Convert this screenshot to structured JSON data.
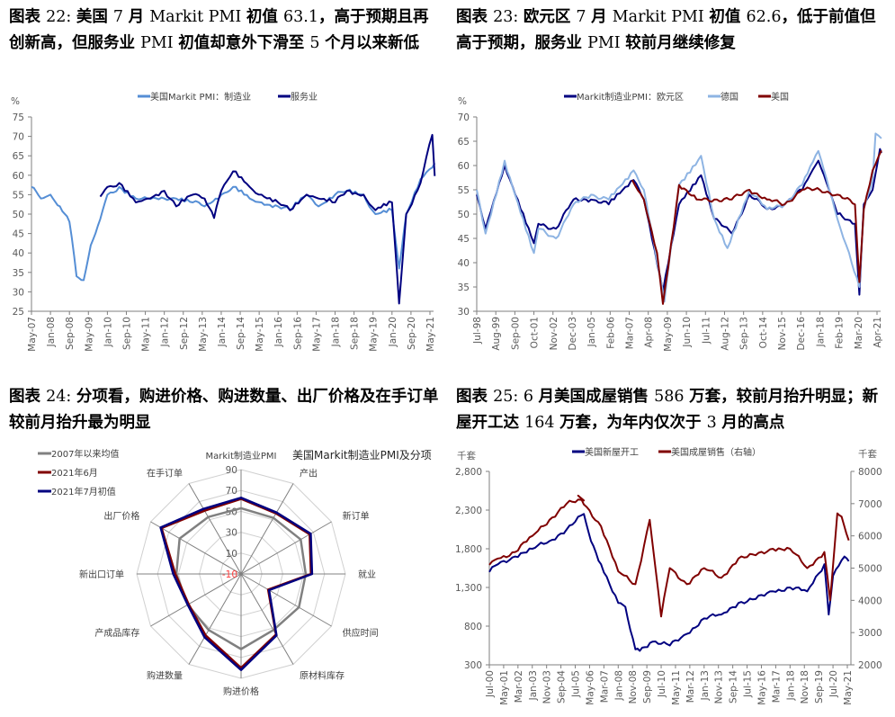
{
  "panels": [
    {
      "caption_parts": [
        {
          "t": "图表 ",
          "s": 0
        },
        {
          "t": "22: ",
          "s": 1
        },
        {
          "t": "美国 ",
          "s": 0
        },
        {
          "t": "7 ",
          "s": 1
        },
        {
          "t": "月 ",
          "s": 0
        },
        {
          "t": "Markit PMI ",
          "s": 1
        },
        {
          "t": "初值 ",
          "s": 0
        },
        {
          "t": "63.1",
          "s": 1
        },
        {
          "t": "，高于预期且再创新高，但服务业 ",
          "s": 0
        },
        {
          "t": "PMI ",
          "s": 1
        },
        {
          "t": "初值却意外下滑至 ",
          "s": 0
        },
        {
          "t": "5 ",
          "s": 1
        },
        {
          "t": "个月以来新低",
          "s": 0
        }
      ]
    },
    {
      "caption_parts": [
        {
          "t": "图表 ",
          "s": 0
        },
        {
          "t": "23: ",
          "s": 1
        },
        {
          "t": "欧元区 ",
          "s": 0
        },
        {
          "t": "7 ",
          "s": 1
        },
        {
          "t": "月 ",
          "s": 0
        },
        {
          "t": "Markit PMI ",
          "s": 1
        },
        {
          "t": "初值 ",
          "s": 0
        },
        {
          "t": "62.6",
          "s": 1
        },
        {
          "t": "，低于前值但高于预期，服务业 ",
          "s": 0
        },
        {
          "t": "PMI ",
          "s": 1
        },
        {
          "t": "较前月继续修复",
          "s": 0
        }
      ]
    },
    {
      "caption_parts": [
        {
          "t": "图表 ",
          "s": 0
        },
        {
          "t": "24: ",
          "s": 1
        },
        {
          "t": "分项看，购进价格、购进数量、出厂价格及在手订单较前月抬升最为明显",
          "s": 0
        }
      ]
    },
    {
      "caption_parts": [
        {
          "t": "图表 ",
          "s": 0
        },
        {
          "t": "25: 6 ",
          "s": 1
        },
        {
          "t": "月美国成屋销售 ",
          "s": 0
        },
        {
          "t": "586 ",
          "s": 1
        },
        {
          "t": "万套，较前月抬升明显；新屋开工达 ",
          "s": 0
        },
        {
          "t": "164 ",
          "s": 1
        },
        {
          "t": "万套，为年内仅次于 ",
          "s": 0
        },
        {
          "t": "3 ",
          "s": 1
        },
        {
          "t": "月的高点",
          "s": 0
        }
      ]
    }
  ],
  "chart_data": [
    {
      "type": "line",
      "title": "图表 22: 美国 7 月 Markit PMI 初值 63.1，高于预期且再创新高，但服务业 PMI 初值却意外下滑至 5 个月以来新低",
      "ylabel": "%",
      "ylim": [
        25,
        75
      ],
      "yticks": [
        "75",
        "70",
        "65",
        "60",
        "55",
        "50",
        "45",
        "40",
        "35",
        "30",
        "25"
      ],
      "xticks": [
        "May-07",
        "Jan-08",
        "Sep-08",
        "May-09",
        "Jan-10",
        "Sep-10",
        "May-11",
        "Jan-12",
        "Sep-12",
        "May-13",
        "Jan-14",
        "Sep-14",
        "May-15",
        "Jan-16",
        "Sep-16",
        "May-17",
        "Jan-18",
        "Sep-18",
        "May-19",
        "Jan-20",
        "Sep-20",
        "May-21"
      ],
      "legend": [
        "美国Markit PMI：制造业",
        "服务业"
      ],
      "colors": [
        "#558ED5",
        "#000080"
      ],
      "series": [
        {
          "name": "美国Markit PMI：制造业",
          "x": [
            "May-07",
            "Sep-07",
            "Jan-08",
            "May-08",
            "Sep-08",
            "Dec-08",
            "Mar-09",
            "Jun-09",
            "Sep-09",
            "Dec-09",
            "Jan-10",
            "Jun-10",
            "Jan-11",
            "Jun-11",
            "Jan-12",
            "Jun-12",
            "Jan-13",
            "Jun-13",
            "Jan-14",
            "Jun-14",
            "Jan-15",
            "Jun-15",
            "Jan-16",
            "Jun-16",
            "Jan-17",
            "Jun-17",
            "Jan-18",
            "Jun-18",
            "Jan-19",
            "Jun-19",
            "Jan-20",
            "Apr-20",
            "Jul-20",
            "Jan-21",
            "Jun-21",
            "Jul-21"
          ],
          "values": [
            57,
            54,
            55,
            52,
            48,
            34,
            33,
            42,
            47,
            53,
            55,
            57,
            54,
            54,
            54,
            54,
            53,
            52,
            55,
            57,
            54,
            53,
            52,
            51,
            55,
            52,
            55,
            56,
            55,
            50,
            51,
            36,
            50,
            59,
            62,
            63.1
          ]
        },
        {
          "name": "服务业",
          "x": [
            "Oct-09",
            "Jan-10",
            "Jun-10",
            "Jan-11",
            "Jun-11",
            "Jan-12",
            "Jun-12",
            "Jan-13",
            "Jun-13",
            "Oct-13",
            "Jan-14",
            "Jun-14",
            "Jan-15",
            "Jun-15",
            "Jan-16",
            "Jun-16",
            "Jan-17",
            "Jun-17",
            "Jan-18",
            "Jun-18",
            "Jan-19",
            "Jun-19",
            "Jan-20",
            "Apr-20",
            "Jul-20",
            "Jan-21",
            "Jun-21",
            "Jul-21"
          ],
          "values": [
            54.5,
            57,
            58,
            53,
            54,
            56,
            52,
            55,
            54,
            49,
            56,
            61,
            57,
            55,
            53,
            51,
            55,
            54,
            53,
            56,
            55,
            51,
            53,
            27,
            50,
            58,
            70.4,
            59.8
          ]
        }
      ]
    },
    {
      "type": "line",
      "title": "图表 23: 欧元区 7 月 Markit PMI 初值 62.6，低于前值但高于预期，服务业 PMI 较前月继续修复",
      "ylabel": "%",
      "ylim": [
        30,
        70
      ],
      "yticks": [
        "70",
        "65",
        "60",
        "55",
        "50",
        "45",
        "40",
        "35",
        "30"
      ],
      "xticks": [
        "Jul-98",
        "Aug-99",
        "Sep-00",
        "Oct-01",
        "Nov-02",
        "Dec-03",
        "Jan-05",
        "Feb-06",
        "Mar-07",
        "Apr-08",
        "May-09",
        "Jun-10",
        "Jul-11",
        "Aug-12",
        "Sep-13",
        "Oct-14",
        "Nov-15",
        "Dec-16",
        "Jan-18",
        "Feb-19",
        "Mar-20",
        "Apr-21"
      ],
      "legend": [
        "Markit制造业PMI：欧元区",
        "德国",
        "美国"
      ],
      "colors": [
        "#000080",
        "#8EB4E3",
        "#800000"
      ],
      "series": [
        {
          "name": "Markit制造业PMI：欧元区",
          "x": [
            "Jul-98",
            "Jan-99",
            "Feb-00",
            "Oct-01",
            "Jan-02",
            "Jan-03",
            "Jan-04",
            "Jan-05",
            "Jan-06",
            "Jun-07",
            "Jan-08",
            "Feb-09",
            "Jan-10",
            "Apr-11",
            "Jan-12",
            "Jan-13",
            "Jan-14",
            "Jan-15",
            "Jan-16",
            "Jan-17",
            "Dec-17",
            "Jan-19",
            "Jan-20",
            "Apr-20",
            "Jul-20",
            "Jan-21",
            "Jun-21",
            "Jul-21"
          ],
          "values": [
            54,
            47,
            60,
            44,
            48,
            47,
            53,
            53,
            52,
            57,
            53,
            34,
            52,
            58,
            49,
            46,
            54,
            51,
            52,
            55,
            61,
            50,
            48,
            33.4,
            52,
            55,
            63.4,
            62.6
          ]
        },
        {
          "name": "德国",
          "x": [
            "Jul-98",
            "Jan-99",
            "Feb-00",
            "Oct-01",
            "Jan-02",
            "Jan-03",
            "Jan-04",
            "Jan-05",
            "Jan-06",
            "Jun-07",
            "Jan-08",
            "Mar-09",
            "Jan-10",
            "Apr-11",
            "Jan-12",
            "Oct-12",
            "Jan-14",
            "Jan-15",
            "Jan-16",
            "Jan-17",
            "Dec-17",
            "Jan-19",
            "Sep-19",
            "Apr-20",
            "Jul-20",
            "Jan-21",
            "Mar-21",
            "Jul-21"
          ],
          "values": [
            55,
            46,
            61,
            42,
            47,
            45,
            52,
            54,
            53,
            59,
            55,
            32,
            56,
            62,
            49,
            43,
            55,
            51,
            52,
            56,
            63,
            49,
            42,
            35,
            51,
            57,
            66.6,
            65.6
          ]
        },
        {
          "name": "美国",
          "x": [
            "May-07",
            "Jan-08",
            "Oct-08",
            "Feb-09",
            "Jan-10",
            "Jan-11",
            "Jan-12",
            "Jan-13",
            "Jan-14",
            "Jan-15",
            "Jan-16",
            "Jan-17",
            "Jan-18",
            "Jan-19",
            "Jan-20",
            "Apr-20",
            "Jul-20",
            "Jan-21",
            "Jul-21"
          ],
          "values": [
            57,
            53,
            42,
            31.5,
            56,
            53,
            53,
            53,
            55,
            53,
            52,
            55,
            55,
            54,
            52,
            36,
            51,
            59,
            63.1
          ]
        }
      ]
    },
    {
      "type": "radar",
      "title": "美国Markit制造业PMI及分项",
      "rlim": [
        -10,
        90
      ],
      "rticks": [
        "90",
        "70",
        "50",
        "30",
        "10",
        "-10"
      ],
      "categories": [
        "Markit制造业PMI",
        "产出",
        "新订单",
        "就业",
        "供应时间",
        "原材料库存",
        "购进价格",
        "购进数量",
        "产成品库存",
        "新出口订单",
        "出厂价格",
        "在手订单"
      ],
      "legend": [
        "2007年以来均值",
        "2021年6月",
        "2021年7月初值"
      ],
      "colors": [
        "#808080",
        "#800000",
        "#000080"
      ],
      "series": [
        {
          "name": "2007年以来均值",
          "values": [
            53,
            52,
            56,
            52,
            54,
            52,
            62,
            52,
            49,
            52,
            58,
            53
          ]
        },
        {
          "name": "2021年6月",
          "values": [
            62,
            57,
            66,
            57,
            20,
            57,
            80,
            58,
            48,
            53,
            78,
            60
          ]
        },
        {
          "name": "2021年7月初值",
          "values": [
            63,
            58,
            67,
            58,
            21,
            58,
            82,
            60,
            49,
            55,
            79,
            62
          ]
        }
      ]
    },
    {
      "type": "line",
      "title": "图表 25: 6 月美国成屋销售 586 万套，较前月抬升明显；新屋开工达 164 万套，为年内仅次于 3 月的高点",
      "ylabel": "千套",
      "ylabel_right": "千套",
      "ylim": [
        300,
        2800
      ],
      "ylim_right": [
        2000,
        8000
      ],
      "yticks": [
        "2,800",
        "2,300",
        "1,800",
        "1,300",
        "800",
        "300"
      ],
      "yticks_right": [
        "8000",
        "7000",
        "6000",
        "5000",
        "4000",
        "3000",
        "2000"
      ],
      "xticks": [
        "Jul-00",
        "May-01",
        "Mar-02",
        "Jan-03",
        "Nov-03",
        "Sep-04",
        "Jul-05",
        "May-06",
        "Mar-07",
        "Jan-08",
        "Nov-08",
        "Sep-09",
        "Jul-10",
        "May-11",
        "Mar-12",
        "Jan-13",
        "Nov-13",
        "Sep-14",
        "Jul-15",
        "May-16",
        "Mar-17",
        "Jan-18",
        "Nov-18",
        "Sep-19",
        "Jul-20",
        "May-21"
      ],
      "legend": [
        "美国新屋开工",
        "美国成屋销售（右轴）"
      ],
      "colors": [
        "#000080",
        "#800000"
      ],
      "series": [
        {
          "name": "美国新屋开工",
          "x": [
            "Jul-00",
            "Jan-01",
            "Jan-02",
            "Jan-03",
            "Jan-04",
            "Jan-05",
            "Jan-06",
            "Jun-06",
            "Jan-07",
            "Jan-08",
            "Jun-08",
            "Jan-09",
            "Apr-09",
            "Jan-10",
            "Jan-11",
            "Jan-12",
            "Jan-13",
            "Jan-14",
            "Jan-15",
            "Jan-16",
            "Jan-17",
            "Jan-18",
            "Jan-19",
            "Jan-20",
            "Apr-20",
            "Jul-20",
            "Jan-21",
            "Mar-21",
            "Jun-21"
          ],
          "values": [
            1500,
            1600,
            1700,
            1800,
            1900,
            2050,
            2250,
            1900,
            1600,
            1100,
            1050,
            500,
            480,
            600,
            550,
            700,
            900,
            950,
            1100,
            1150,
            1250,
            1300,
            1250,
            1600,
            950,
            1450,
            1650,
            1700,
            1640
          ]
        },
        {
          "name": "美国成屋销售（右轴）",
          "x": [
            "Jul-00",
            "Jan-01",
            "Jan-02",
            "Jan-03",
            "Jan-04",
            "Jan-05",
            "Jan-06",
            "Sep-05",
            "Jan-07",
            "Jan-08",
            "Jan-09",
            "Nov-09",
            "Mar-10",
            "Jul-10",
            "Jan-11",
            "Jan-12",
            "Jan-13",
            "Jan-14",
            "Jan-15",
            "Jan-16",
            "Jan-17",
            "Jan-18",
            "Jan-19",
            "Jan-20",
            "May-20",
            "Oct-20",
            "Jan-21",
            "Jun-21"
          ],
          "values": [
            5100,
            5300,
            5500,
            6000,
            6500,
            7000,
            7100,
            7250,
            6300,
            4900,
            4500,
            6500,
            5000,
            3500,
            5000,
            4500,
            5000,
            4700,
            5300,
            5400,
            5600,
            5600,
            5000,
            5500,
            4000,
            6700,
            6600,
            5860
          ]
        }
      ]
    }
  ]
}
